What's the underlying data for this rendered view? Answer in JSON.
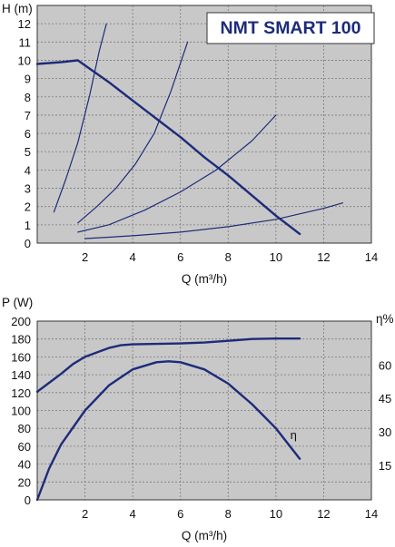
{
  "colors": {
    "plot_background": "#c8c8c8",
    "grid": "#7a7a7a",
    "curve": "#1d2b7a",
    "title_box": "#ffffff"
  },
  "chart_data": [
    {
      "type": "line",
      "title": "NMT SMART 100",
      "xlabel": "Q (m³/h)",
      "ylabel": "H (m)",
      "xlim": [
        0,
        14
      ],
      "ylim": [
        0,
        13
      ],
      "x_ticks": [
        2,
        4,
        6,
        8,
        10,
        12,
        14
      ],
      "y_ticks": [
        0,
        1,
        2,
        3,
        4,
        5,
        6,
        7,
        8,
        9,
        10,
        11,
        12
      ],
      "grid": true,
      "series": [
        {
          "role": "pump-curve",
          "x": [
            0,
            0.5,
            1.0,
            1.7,
            3.0,
            4.0,
            5.0,
            6.0,
            7.0,
            8.0,
            9.0,
            10.0,
            11.0
          ],
          "y": [
            9.8,
            9.85,
            9.9,
            10.0,
            8.8,
            7.8,
            6.8,
            5.8,
            4.7,
            3.7,
            2.6,
            1.5,
            0.5
          ]
        },
        {
          "role": "system-curve",
          "x": [
            0.7,
            1.2,
            1.7,
            2.2,
            2.6,
            2.9
          ],
          "y": [
            1.7,
            3.5,
            5.5,
            8.1,
            10.5,
            12.0
          ]
        },
        {
          "role": "system-curve",
          "x": [
            1.7,
            2.5,
            3.3,
            4.1,
            4.9,
            5.6,
            6.3
          ],
          "y": [
            1.1,
            2.0,
            3.0,
            4.3,
            6.0,
            8.3,
            11.0
          ]
        },
        {
          "role": "system-curve",
          "x": [
            1.7,
            3.0,
            4.5,
            6.0,
            7.5,
            9.0,
            10.0
          ],
          "y": [
            0.6,
            1.0,
            1.8,
            2.8,
            4.0,
            5.6,
            7.0
          ]
        },
        {
          "role": "system-curve",
          "x": [
            2.0,
            4.0,
            6.0,
            8.0,
            10.0,
            12.0,
            12.8
          ],
          "y": [
            0.25,
            0.4,
            0.6,
            0.9,
            1.3,
            1.9,
            2.2
          ]
        }
      ]
    },
    {
      "type": "line",
      "xlabel": "Q (m³/h)",
      "ylabel": "P (W)",
      "y2label": "η%",
      "xlim": [
        0,
        14
      ],
      "ylim": [
        0,
        200
      ],
      "y2lim": [
        0,
        80
      ],
      "x_ticks": [
        2,
        4,
        6,
        8,
        10,
        12,
        14
      ],
      "y_ticks": [
        0,
        20,
        40,
        60,
        80,
        100,
        120,
        140,
        160,
        180,
        200
      ],
      "y2_ticks": [
        15,
        30,
        45,
        60
      ],
      "grid": true,
      "series": [
        {
          "role": "power",
          "x": [
            0,
            0.5,
            1.0,
            1.5,
            2.0,
            2.5,
            3.0,
            3.5,
            4.0,
            5.0,
            6.0,
            7.0,
            8.0,
            9.0,
            10.0,
            11.0
          ],
          "y": [
            121,
            131,
            141,
            152,
            160,
            165,
            170,
            173,
            174,
            174.5,
            175,
            176,
            178,
            180,
            180.5,
            180.5
          ]
        },
        {
          "role": "efficiency",
          "label": "η",
          "label_at": [
            10.6,
            68
          ],
          "x": [
            0,
            0.5,
            1.0,
            2.0,
            3.0,
            4.0,
            5.0,
            5.5,
            6.0,
            7.0,
            8.0,
            9.0,
            10.0,
            11.0
          ],
          "y": [
            0,
            35,
            62,
            100,
            128,
            146,
            154,
            155,
            154,
            146,
            130,
            107,
            80,
            46
          ]
        }
      ]
    }
  ]
}
